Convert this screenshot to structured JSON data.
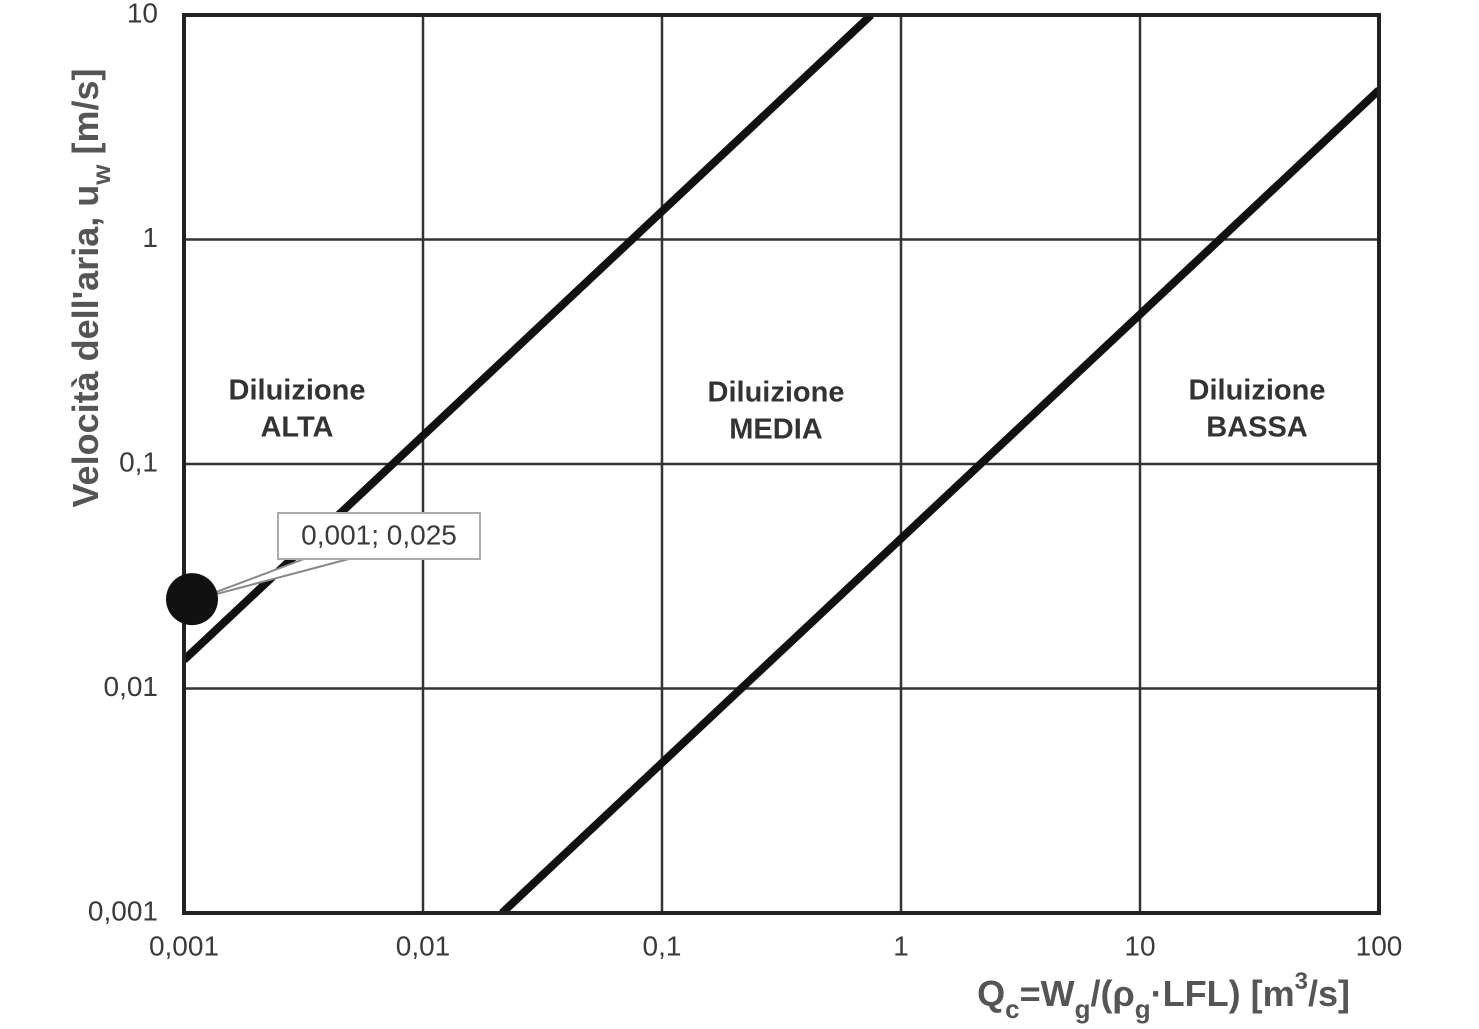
{
  "chart_data": {
    "type": "line",
    "xlabel_parts": [
      "Q",
      "c",
      "=W",
      "g",
      "/(ρ",
      "g",
      "·LFL) [m",
      "3",
      "/s]"
    ],
    "ylabel_parts": [
      "Velocità dell'aria, u",
      "w",
      " [m/s]"
    ],
    "log_x": true,
    "log_y": true,
    "grid": true,
    "xlim": [
      0.001,
      100
    ],
    "ylim": [
      0.001,
      10
    ],
    "xticks": [
      {
        "value": 0.001,
        "label": "0,001"
      },
      {
        "value": 0.01,
        "label": "0,01"
      },
      {
        "value": 0.1,
        "label": "0,1"
      },
      1,
      10,
      100
    ],
    "yticks": [
      {
        "value": 0.001,
        "label": "0,001"
      },
      {
        "value": 0.01,
        "label": "0,01"
      },
      {
        "value": 0.1,
        "label": "0,1"
      },
      1,
      10
    ],
    "series": [
      {
        "color": "#111111",
        "x": [
          0.001,
          0.75
        ],
        "values": [
          0.0134,
          10
        ]
      },
      {
        "color": "#111111",
        "x": [
          0.0214,
          100
        ],
        "values": [
          0.001,
          4.63
        ]
      }
    ],
    "point": {
      "x": 0.001,
      "y": 0.025,
      "label": "0,001; 0,025",
      "color": "#111111"
    },
    "regions": [
      [
        "Diluizione",
        "ALTA"
      ],
      [
        "Diluizione",
        "MEDIA"
      ],
      [
        "Diluizione",
        "BASSA"
      ]
    ]
  }
}
